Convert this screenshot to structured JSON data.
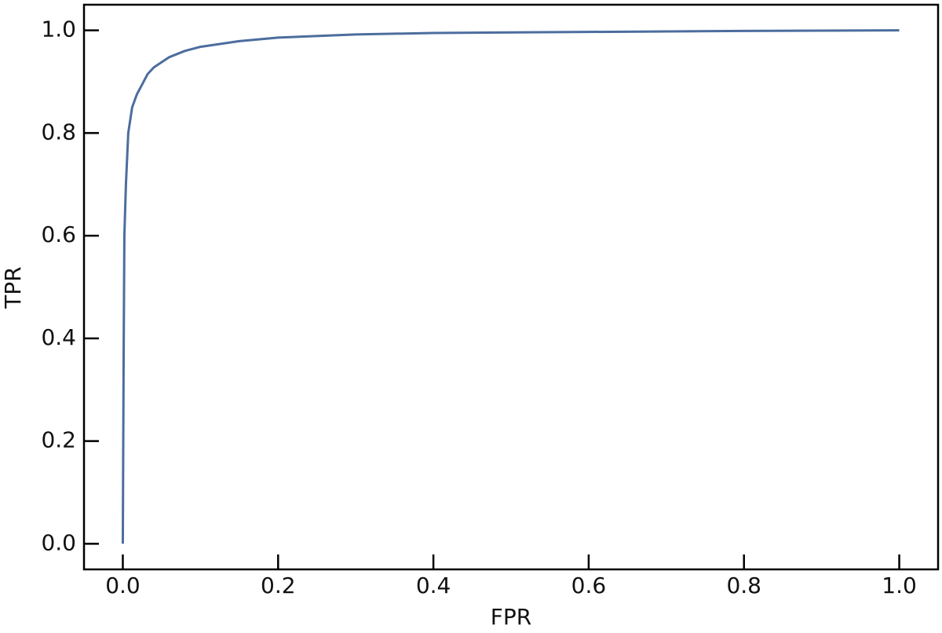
{
  "chart_data": {
    "type": "line",
    "x_label": "FPR",
    "y_label": "TPR",
    "series": [
      {
        "color": "#4c6d9e",
        "x": [
          0,
          0.001,
          0.002,
          0.004,
          0.007,
          0.012,
          0.018,
          0.025,
          0.032,
          0.04,
          0.06,
          0.08,
          0.1,
          0.15,
          0.2,
          0.3,
          0.4,
          0.6,
          0.8,
          1.0
        ],
        "values": [
          0,
          0.35,
          0.6,
          0.7,
          0.8,
          0.85,
          0.875,
          0.895,
          0.915,
          0.928,
          0.948,
          0.96,
          0.968,
          0.979,
          0.986,
          0.992,
          0.995,
          0.997,
          0.999,
          1.0
        ]
      }
    ],
    "xlim": [
      -0.05,
      1.05
    ],
    "ylim": [
      -0.05,
      1.05
    ],
    "xticks": [
      {
        "value": 0,
        "label": "0.0"
      },
      0.2,
      0.4,
      0.6,
      0.8,
      {
        "value": 1,
        "label": "1.0"
      }
    ],
    "yticks": [
      {
        "value": 0,
        "label": "0.0"
      },
      0.2,
      0.4,
      0.6,
      0.8,
      {
        "value": 1,
        "label": "1.0"
      }
    ]
  }
}
